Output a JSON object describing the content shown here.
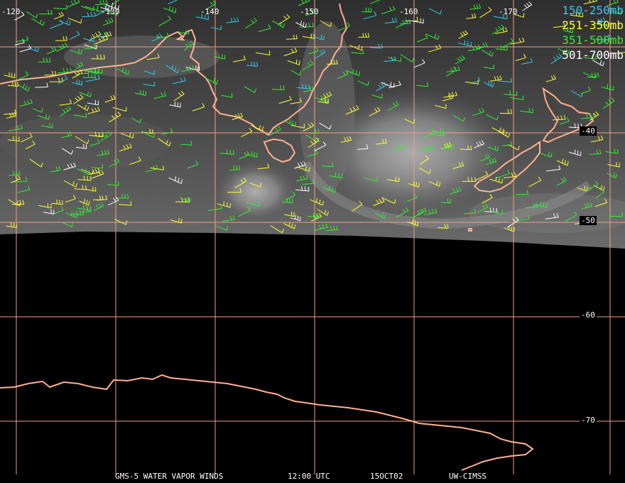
{
  "legend": {
    "items": [
      {
        "label": "150-250mb",
        "color": "#33ccee"
      },
      {
        "label": "251-350mb",
        "color": "#ffff33"
      },
      {
        "label": "351-500mb",
        "color": "#33ee33"
      },
      {
        "label": "501-700mb",
        "color": "#ffffff"
      }
    ]
  },
  "grid": {
    "longitude_labels": [
      "-120",
      "-130",
      "-140",
      "-150",
      "-160",
      "-170"
    ],
    "latitude_labels": [
      "-40",
      "-50",
      "-60",
      "-70"
    ],
    "line_color": "#f0a080"
  },
  "footer": {
    "satellite": "GMS-5 WATER VAPOR WINDS",
    "time": "12:00 UTC",
    "date": "15OCT02",
    "credit": "UW-CIMSS"
  },
  "colors": {
    "coastline": "#ffb090",
    "background": "#000000",
    "imagery_gray": "#5a5a5a"
  }
}
